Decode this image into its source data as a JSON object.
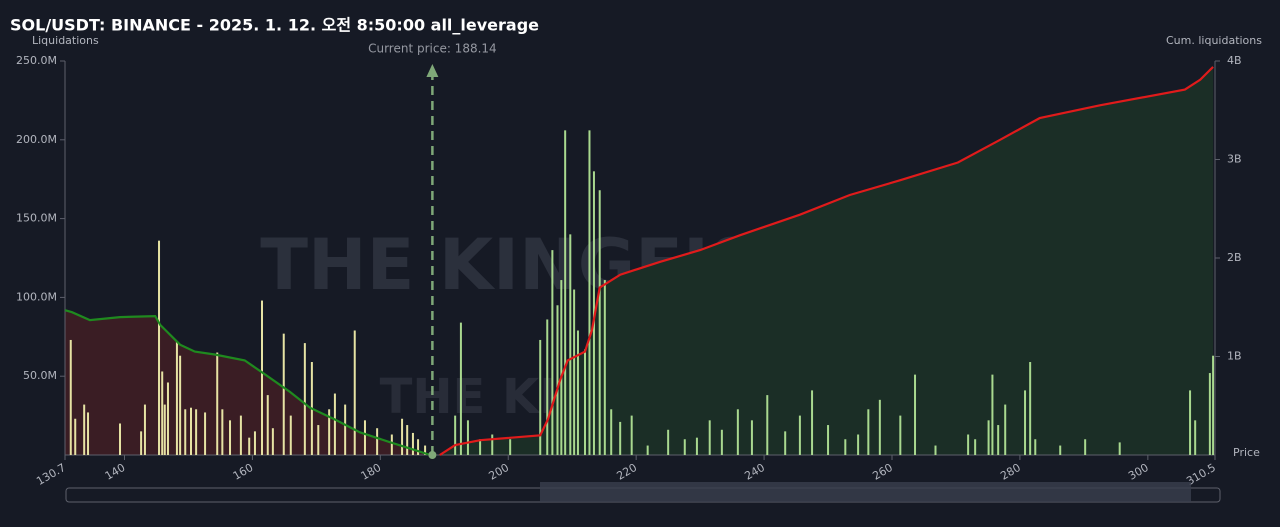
{
  "chart_data": {
    "type": "liquidation",
    "title": "SOL/USDT: BINANCE - 2025. 1. 12. 오전 8:50:00 all_leverage",
    "y_label": "Liquidations",
    "y2_label": "Cum. liquidations",
    "x_label": "Price",
    "current_price": 188.14,
    "current_price_label": "Current price: 188.14",
    "watermark": "THE KINGFISHER.io",
    "xlim": [
      130.7,
      310.5
    ],
    "xticks": [
      130.7,
      140,
      160,
      180,
      200,
      220,
      240,
      260,
      280,
      300,
      310.5
    ],
    "ylim": [
      0,
      250000000
    ],
    "yticks": [
      {
        "value": 50000000,
        "label": "50.0M"
      },
      {
        "value": 100000000,
        "label": "100.0M"
      },
      {
        "value": 150000000,
        "label": "150.0M"
      },
      {
        "value": 200000000,
        "label": "200.0M"
      },
      {
        "value": 250000000,
        "label": "250.0M"
      }
    ],
    "y2lim": [
      0,
      4000000000
    ],
    "y2ticks": [
      {
        "value": 1000000000,
        "label": "1B"
      },
      {
        "value": 2000000000,
        "label": "2B"
      },
      {
        "value": 3000000000,
        "label": "3B"
      },
      {
        "value": 4000000000,
        "label": "4B"
      }
    ],
    "long_bars": {
      "color": "#e6e3a4",
      "x": [
        131.6,
        132.3,
        133.7,
        134.3,
        139.3,
        142.6,
        143.2,
        145.4,
        145.9,
        146.3,
        146.8,
        148.2,
        148.7,
        149.5,
        150.4,
        151.2,
        152.6,
        154.5,
        155.3,
        156.5,
        158.2,
        159.5,
        160.4,
        161.5,
        162.4,
        163.2,
        164.9,
        166.0,
        168.2,
        169.3,
        170.3,
        172.0,
        172.9,
        174.5,
        176.0,
        177.6,
        179.5,
        181.8,
        183.4,
        184.2,
        185.1,
        185.9,
        187.0
      ],
      "values": [
        73000000,
        23000000,
        32000000,
        27000000,
        20000000,
        15000000,
        32000000,
        136000000,
        53000000,
        32000000,
        46000000,
        72000000,
        63000000,
        29000000,
        30000000,
        29000000,
        27000000,
        65000000,
        29000000,
        22000000,
        25000000,
        11000000,
        15000000,
        98000000,
        38000000,
        17000000,
        77000000,
        25000000,
        71000000,
        59000000,
        19000000,
        29000000,
        39000000,
        32000000,
        79000000,
        22000000,
        17000000,
        13000000,
        23000000,
        19000000,
        14000000,
        10000000,
        6000000
      ]
    },
    "short_bars": {
      "color": "#a9d98f",
      "x": [
        191.7,
        192.6,
        193.7,
        195.6,
        197.5,
        200.3,
        205.0,
        206.1,
        206.9,
        207.7,
        208.3,
        208.9,
        209.7,
        210.3,
        210.9,
        212.0,
        212.7,
        213.4,
        214.3,
        215.1,
        216.1,
        217.5,
        219.3,
        221.8,
        225.0,
        227.6,
        229.5,
        231.5,
        233.4,
        235.9,
        238.1,
        240.5,
        243.3,
        245.6,
        247.5,
        250.0,
        252.7,
        254.7,
        256.3,
        258.1,
        261.3,
        263.6,
        266.8,
        271.9,
        273.0,
        275.1,
        275.7,
        276.6,
        277.7,
        280.8,
        281.6,
        282.4,
        286.3,
        290.2,
        295.6,
        306.6,
        307.4,
        309.7,
        310.2
      ],
      "values": [
        25000000,
        84000000,
        22000000,
        10000000,
        13000000,
        10000000,
        73000000,
        86000000,
        130000000,
        95000000,
        111000000,
        206000000,
        140000000,
        105000000,
        79000000,
        67000000,
        206000000,
        180000000,
        168000000,
        111000000,
        29000000,
        21000000,
        25000000,
        6000000,
        16000000,
        10000000,
        11000000,
        22000000,
        16000000,
        29000000,
        22000000,
        38000000,
        15000000,
        25000000,
        41000000,
        19000000,
        10000000,
        13000000,
        29000000,
        35000000,
        25000000,
        51000000,
        6000000,
        13000000,
        10000000,
        22000000,
        51000000,
        19000000,
        32000000,
        41000000,
        59000000,
        10000000,
        6000000,
        10000000,
        8000000,
        41000000,
        22000000,
        52000000,
        63000000
      ]
    },
    "cum_long": {
      "color": "#1f8a1f",
      "fill": "#3a1d24",
      "axis": "y2",
      "x": [
        130.7,
        131.8,
        134.6,
        139.3,
        144.8,
        145.6,
        148.7,
        151.0,
        154.1,
        158.8,
        161.5,
        165.9,
        169.0,
        172.9,
        176.8,
        181.5,
        185.4,
        187.8
      ],
      "values": [
        1470000000,
        1450000000,
        1370000000,
        1400000000,
        1410000000,
        1320000000,
        1120000000,
        1050000000,
        1020000000,
        960000000,
        840000000,
        640000000,
        480000000,
        360000000,
        230000000,
        130000000,
        50000000,
        0
      ]
    },
    "cum_short": {
      "color": "#e01b1b",
      "fill": "#1b2e26",
      "axis": "y2",
      "x": [
        189.3,
        191.7,
        195.6,
        205.0,
        206.2,
        208.1,
        209.3,
        212.0,
        213.1,
        214.3,
        217.5,
        223.7,
        230.0,
        236.2,
        245.6,
        253.4,
        261.3,
        270.3,
        276.9,
        283.1,
        292.5,
        305.8,
        308.2,
        310.2
      ],
      "values": [
        0,
        100000000,
        150000000,
        200000000,
        360000000,
        760000000,
        960000000,
        1050000000,
        1270000000,
        1700000000,
        1830000000,
        1960000000,
        2080000000,
        2230000000,
        2440000000,
        2640000000,
        2790000000,
        2970000000,
        3200000000,
        3420000000,
        3550000000,
        3710000000,
        3810000000,
        3940000000
      ]
    }
  }
}
